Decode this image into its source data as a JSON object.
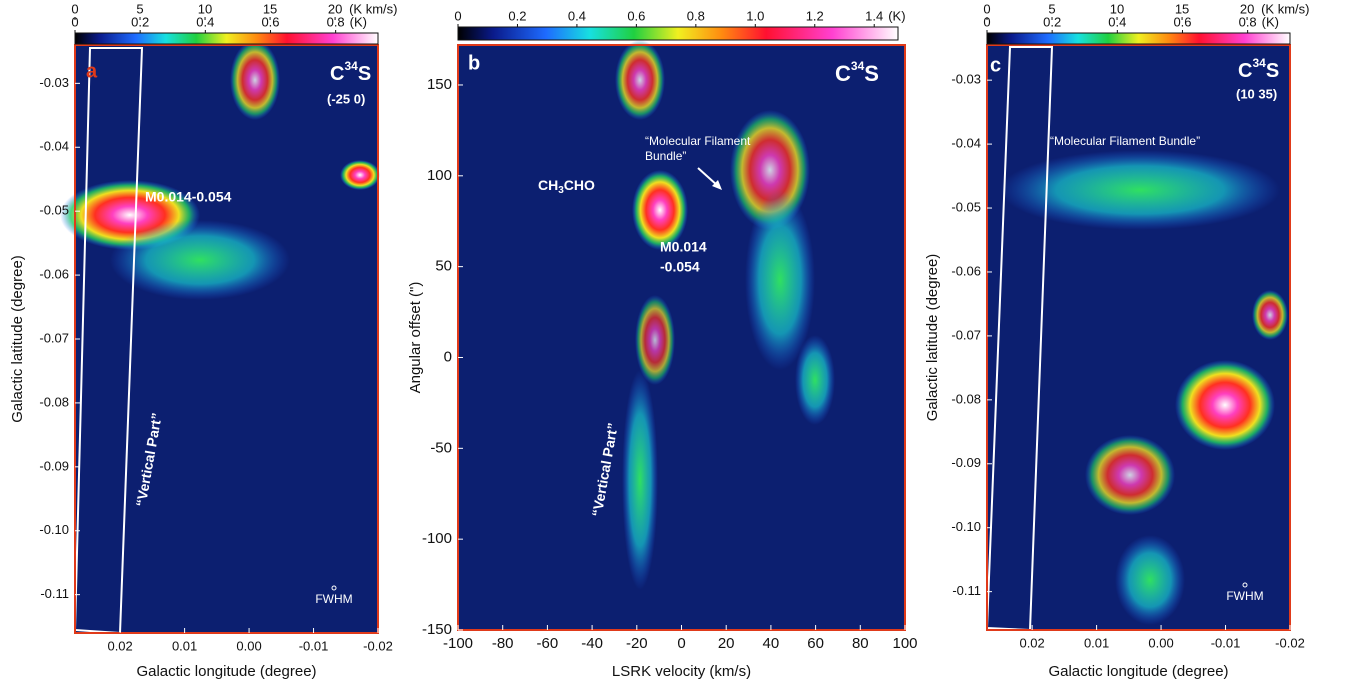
{
  "panels": [
    {
      "letter": "a",
      "molecule": {
        "main": "C",
        "sup": "34",
        "end": "S"
      },
      "velocity_range": "(-25 0)",
      "xlabel": "Galactic longitude (degree)",
      "ylabel": "Galactic latitude (degree)",
      "xlim": [
        0.027,
        -0.02
      ],
      "ylim": [
        -0.116,
        -0.024
      ],
      "xticks": [
        0.02,
        0.01,
        {
          "value": 0,
          "label": "0.00"
        },
        -0.01,
        -0.02
      ],
      "yticks": [
        -0.03,
        -0.04,
        -0.05,
        -0.06,
        -0.07,
        -0.08,
        -0.09,
        {
          "value": -0.1,
          "label": "-0.10"
        },
        -0.11
      ],
      "colorbars": [
        {
          "lim": [
            0,
            23.3
          ],
          "ticks": [
            0,
            5,
            10,
            15,
            20
          ],
          "unit": "(K km/s)"
        },
        {
          "lim": [
            0,
            0.93
          ],
          "ticks": [
            0,
            0.2,
            0.4,
            0.6,
            0.8
          ],
          "unit": "(K)"
        }
      ],
      "annotations": {
        "source": "M0.014-0.054",
        "vertical": "“Vertical Part”",
        "beam": "FWHM"
      }
    },
    {
      "letter": "b",
      "molecule": {
        "main": "C",
        "sup": "34",
        "end": "S"
      },
      "xlabel": "LSRK velocity (km/s)",
      "ylabel": "Angular offset (\")",
      "xlim": [
        -100,
        100
      ],
      "ylim": [
        -150,
        172
      ],
      "xticks": [
        -100,
        -80,
        -60,
        -40,
        -20,
        0,
        20,
        40,
        60,
        80,
        100
      ],
      "yticks": [
        150,
        100,
        50,
        0,
        -50,
        -100,
        -150
      ],
      "colorbars": [
        {
          "lim": [
            0,
            1.48
          ],
          "ticks": [
            0,
            0.2,
            0.4,
            0.6,
            0.8,
            {
              "value": 1,
              "label": "1.0"
            },
            1.2,
            1.4
          ],
          "unit": "(K)"
        }
      ],
      "annotations": {
        "source_line1": "M0.014",
        "source_line2": "-0.054",
        "vertical": "“Vertical Part”",
        "species": {
          "main": "CH",
          "sub": "3",
          "end": "CHO"
        },
        "bundle_line1": "“Molecular Filament",
        "bundle_line2": "Bundle”"
      }
    },
    {
      "letter": "c",
      "molecule": {
        "main": "C",
        "sup": "34",
        "end": "S"
      },
      "velocity_range": "(10 35)",
      "xlabel": "Galactic longitude (degree)",
      "ylabel": "Galactic latitude (degree)",
      "xlim": [
        0.027,
        -0.02
      ],
      "ylim": [
        -0.116,
        -0.0245
      ],
      "xticks": [
        0.02,
        0.01,
        {
          "value": 0,
          "label": "0.00"
        },
        -0.01,
        -0.02
      ],
      "yticks": [
        -0.03,
        -0.04,
        -0.05,
        -0.06,
        -0.07,
        -0.08,
        -0.09,
        {
          "value": -0.1,
          "label": "-0.10"
        },
        -0.11
      ],
      "colorbars": [
        {
          "lim": [
            0,
            23.3
          ],
          "ticks": [
            0,
            5,
            10,
            15,
            20
          ],
          "unit": "(K km/s)"
        },
        {
          "lim": [
            0,
            0.93
          ],
          "ticks": [
            0,
            0.2,
            0.4,
            0.6,
            0.8
          ],
          "unit": "(K)"
        }
      ],
      "annotations": {
        "bundle": "“Molecular Filament Bundle”",
        "beam": "FWHM"
      }
    }
  ]
}
